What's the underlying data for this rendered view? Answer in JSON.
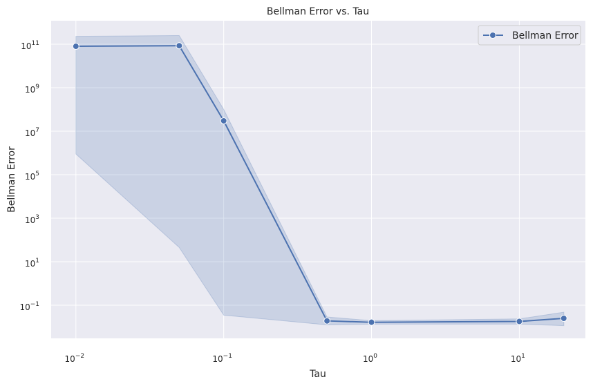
{
  "chart_data": {
    "type": "line",
    "title": "Bellman Error vs. Tau",
    "xlabel": "Tau",
    "ylabel": "Bellman Error",
    "xscale": "log",
    "yscale": "log",
    "xlim": [
      0.0068,
      28
    ],
    "ylim": [
      0.003,
      1200000000000.0
    ],
    "grid": true,
    "legend_position": "top-right",
    "background_color": "#eaeaf2",
    "line_color": "#4c72b0",
    "x_ticks": [
      {
        "value": 0.01,
        "base": "10",
        "exp": "−2"
      },
      {
        "value": 0.1,
        "base": "10",
        "exp": "−1"
      },
      {
        "value": 1,
        "base": "10",
        "exp": "0"
      },
      {
        "value": 10,
        "base": "10",
        "exp": "1"
      }
    ],
    "y_ticks": [
      {
        "value": 0.1,
        "base": "10",
        "exp": "−1"
      },
      {
        "value": 10,
        "base": "10",
        "exp": "1"
      },
      {
        "value": 1000,
        "base": "10",
        "exp": "3"
      },
      {
        "value": 100000,
        "base": "10",
        "exp": "5"
      },
      {
        "value": 10000000,
        "base": "10",
        "exp": "7"
      },
      {
        "value": 1000000000,
        "base": "10",
        "exp": "9"
      },
      {
        "value": 100000000000,
        "base": "10",
        "exp": "11"
      }
    ],
    "series": [
      {
        "name": "Bellman Error",
        "x": [
          0.01,
          0.05,
          0.1,
          0.5,
          1,
          10,
          20
        ],
        "y": [
          80000000000.0,
          85000000000.0,
          30000000.0,
          0.019,
          0.0165,
          0.018,
          0.025
        ],
        "lower": [
          900000.0,
          45,
          0.035,
          0.0125,
          0.0135,
          0.0135,
          0.0115
        ],
        "upper": [
          230000000000.0,
          250000000000.0,
          100000000.0,
          0.029,
          0.0195,
          0.0235,
          0.048
        ]
      }
    ]
  }
}
